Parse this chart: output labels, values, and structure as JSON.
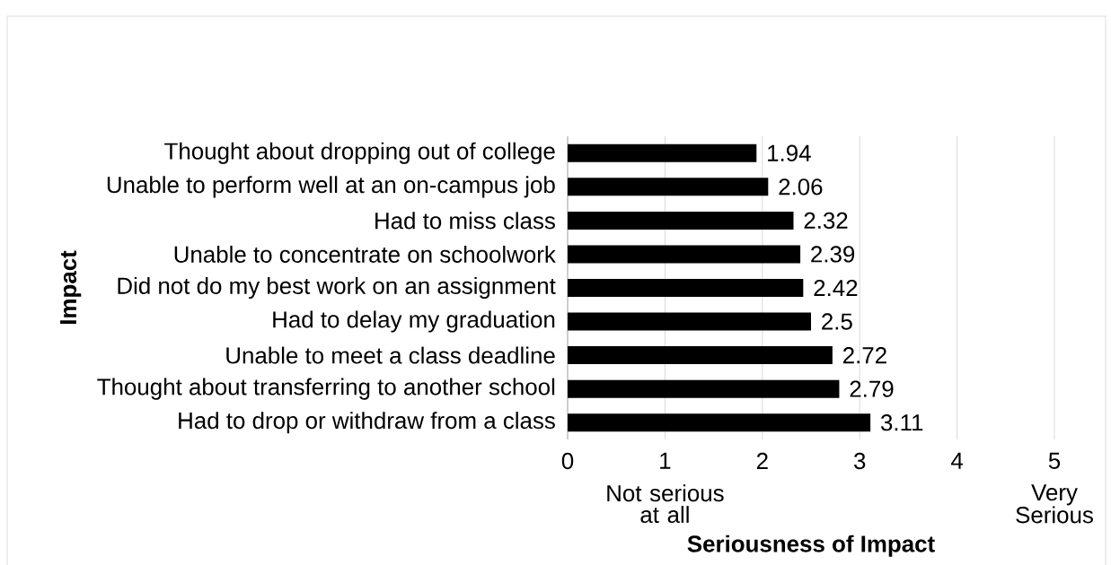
{
  "chart_data": {
    "type": "bar",
    "orientation": "horizontal",
    "xlabel": "Seriousness of Impact",
    "ylabel": "Impact",
    "categories": [
      "Thought about dropping out of college",
      "Unable to perform well at an on-campus job",
      "Had to miss class",
      "Unable to concentrate on schoolwork",
      "Did not do my best work on an assignment",
      "Had to delay my graduation",
      "Unable to meet a class deadline",
      "Thought about transferring to another school",
      "Had to drop or withdraw from a class"
    ],
    "values": [
      1.94,
      2.06,
      2.32,
      2.39,
      2.42,
      2.5,
      2.72,
      2.79,
      3.11
    ],
    "color": "#000000",
    "xlim": [
      0,
      5
    ],
    "xticks": [
      0,
      1,
      2,
      3,
      4,
      5
    ],
    "grid": "x",
    "data_labels": true,
    "annotations": [
      "Not serious at all",
      "Very Serious"
    ]
  }
}
